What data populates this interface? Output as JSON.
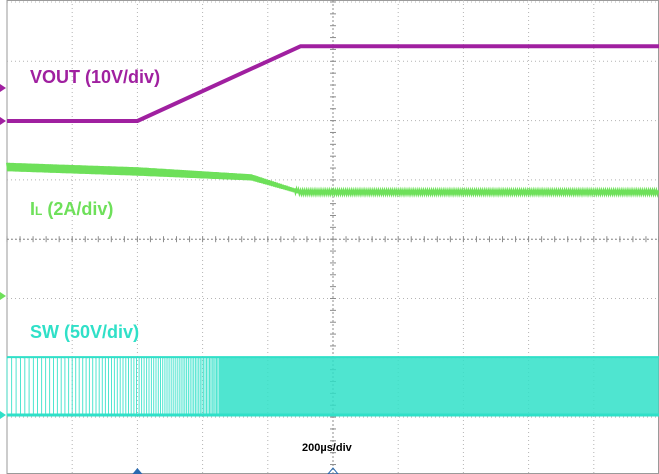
{
  "chart_data": {
    "type": "line",
    "timebase": "200µs/div",
    "grid": true,
    "divisions": {
      "x": 10,
      "y": 8
    },
    "x_range_us": [
      0,
      2000
    ],
    "series": [
      {
        "name": "VOUT",
        "scale": "10V/div",
        "color": "#a020a0",
        "x_us": [
          0,
          400,
          900,
          2000
        ],
        "y_div": [
          0,
          0,
          2.1,
          2.1
        ]
      },
      {
        "name": "I",
        "sub": "L",
        "scale": "2A/div",
        "color": "#6ee05a",
        "x_us": [
          0,
          400,
          750,
          900,
          2000
        ],
        "y_div": [
          0,
          -0.15,
          -0.35,
          -0.85,
          -0.85
        ],
        "ripple_div": [
          0.28,
          0.28,
          0.2,
          0.12,
          0.12
        ]
      },
      {
        "name": "SW",
        "scale": "50V/div",
        "color": "#30e0c8",
        "x_us": [
          0,
          2000
        ],
        "low_div": 0,
        "high_div": 1.5,
        "switching": "continuous, increasing frequency until ~650µs"
      }
    ]
  }
}
